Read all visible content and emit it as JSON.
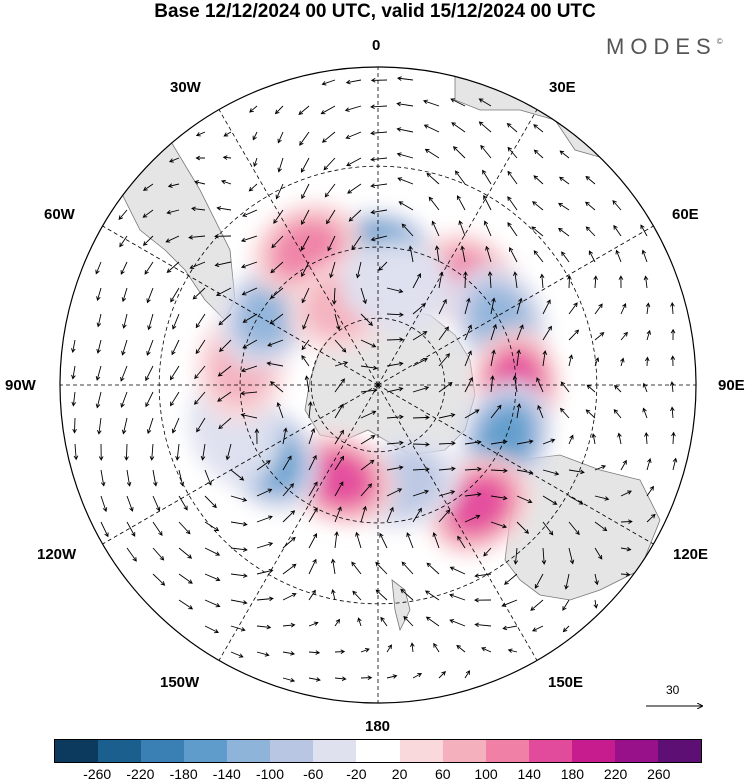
{
  "title": "Base 12/12/2024 00 UTC, valid 15/12/2024 00 UTC",
  "brand": "MODES",
  "brand_mark": "©",
  "longitude_labels": {
    "lon_0": "0",
    "lon_30e": "30E",
    "lon_60e": "60E",
    "lon_90e": "90E",
    "lon_120e": "120E",
    "lon_150e": "150E",
    "lon_180": "180",
    "lon_150w": "150W",
    "lon_120w": "120W",
    "lon_90w": "90W",
    "lon_60w": "60W",
    "lon_30w": "30W"
  },
  "wind_reference": {
    "label": "30"
  },
  "colorbar": {
    "colors": [
      "#0b3a5e",
      "#1a5f8e",
      "#3b80b5",
      "#5f9ccb",
      "#8eb4da",
      "#b9c6e3",
      "#dfe1ef",
      "#ffffff",
      "#f9d9dc",
      "#f4b0bd",
      "#f080a6",
      "#e24a9c",
      "#c71c8e",
      "#99118a",
      "#5e0f73"
    ],
    "labels": [
      "-260",
      "-220",
      "-180",
      "-140",
      "-100",
      "-60",
      "-20",
      "20",
      "60",
      "100",
      "140",
      "180",
      "220",
      "260"
    ]
  },
  "map": {
    "projection": "south-polar-stereographic",
    "anomaly_centers": [
      {
        "lon": 0,
        "lat": -52,
        "value": -180
      },
      {
        "lon": 42,
        "lat": -50,
        "value": 110
      },
      {
        "lon": 62,
        "lat": -50,
        "value": -130
      },
      {
        "lon": 90,
        "lat": -50,
        "value": 170
      },
      {
        "lon": 112,
        "lat": -50,
        "value": -170
      },
      {
        "lon": 140,
        "lat": -45,
        "value": 170
      },
      {
        "lon": 165,
        "lat": -60,
        "value": -70
      },
      {
        "lon": 202,
        "lat": -60,
        "value": 150
      },
      {
        "lon": 236,
        "lat": -52,
        "value": -160
      },
      {
        "lon": 253,
        "lat": -47,
        "value": -60
      },
      {
        "lon": 278,
        "lat": -50,
        "value": 80
      },
      {
        "lon": 303,
        "lat": -52,
        "value": -120
      },
      {
        "lon": 332,
        "lat": -46,
        "value": 110
      },
      {
        "lon": 336,
        "lat": -64,
        "value": 60
      },
      {
        "lon": 11,
        "lat": -60,
        "value": -60
      }
    ]
  }
}
